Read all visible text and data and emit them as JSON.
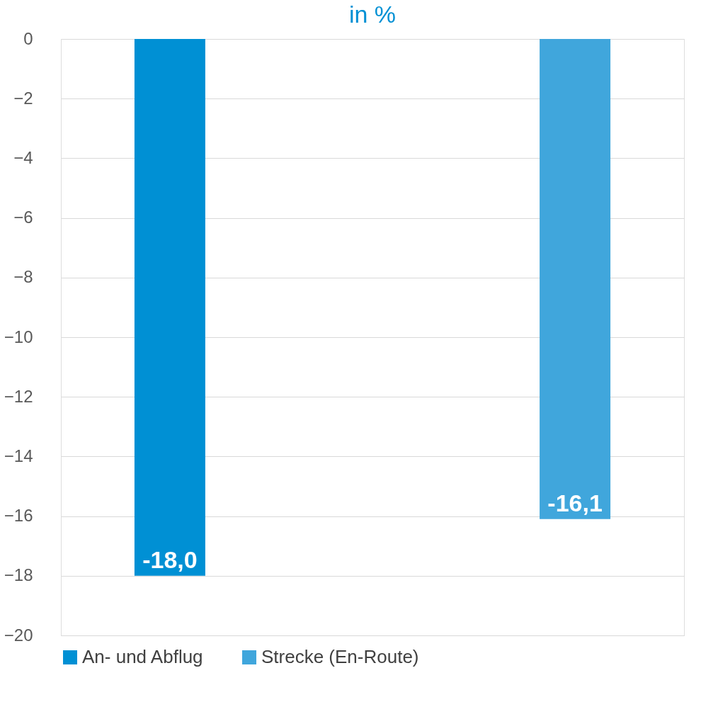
{
  "chart_data": {
    "type": "bar",
    "title": "in %",
    "categories": [
      null
    ],
    "series": [
      {
        "name": "An- und Abflug",
        "color": "#0090d4",
        "values": [
          -18.0
        ],
        "value_labels": [
          "-18,0"
        ]
      },
      {
        "name": "Strecke (En-Route)",
        "color": "#40a6dc",
        "values": [
          -16.1
        ],
        "value_labels": [
          "-16,1"
        ]
      }
    ],
    "ylim": [
      -20,
      0
    ],
    "yticks": [
      0,
      -2,
      -4,
      -6,
      -8,
      -10,
      -12,
      -14,
      -16,
      -18,
      -20
    ],
    "grid": "y",
    "legend": "bottom",
    "tick_labels": "y"
  }
}
